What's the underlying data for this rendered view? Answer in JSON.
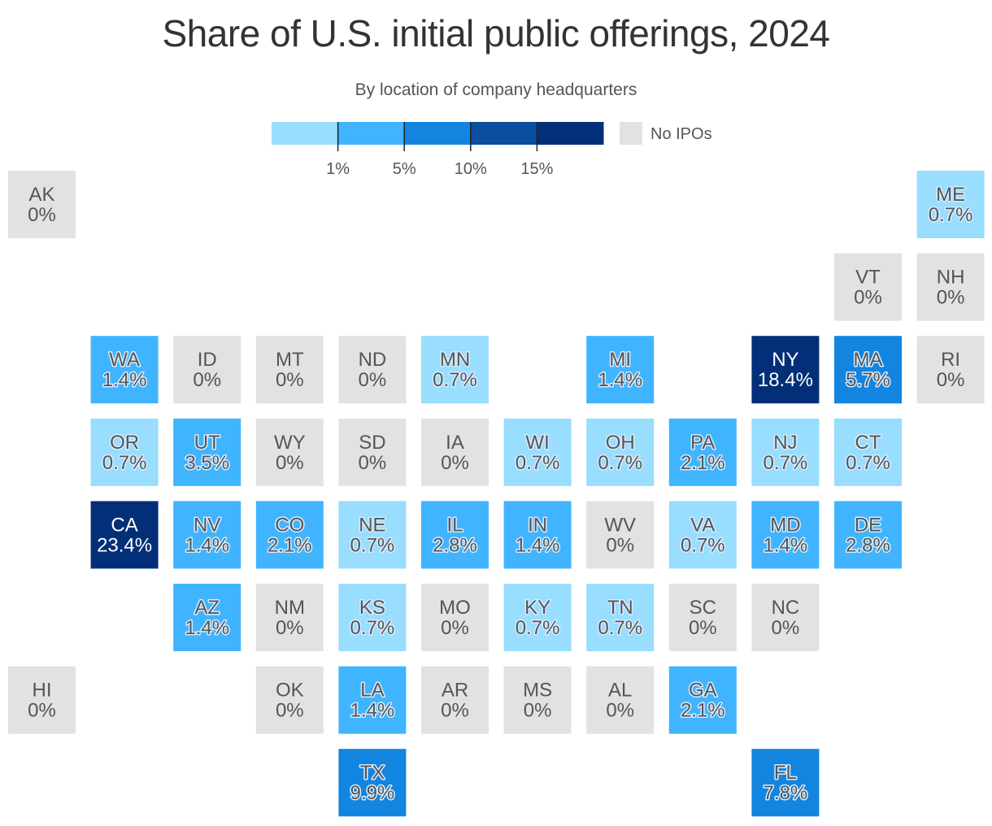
{
  "header": {
    "title": "Share of U.S. initial public offerings, 2024",
    "subtitle": "By location of company headquarters"
  },
  "legend": {
    "bins": [
      {
        "color": "#99ddff"
      },
      {
        "color": "#40b4ff"
      },
      {
        "color": "#1285e0"
      },
      {
        "color": "#0a4ea0"
      },
      {
        "color": "#032f78"
      }
    ],
    "ticks": [
      "1%",
      "5%",
      "10%",
      "15%"
    ],
    "tick_values": [
      1,
      5,
      10,
      15
    ],
    "no_ipo_label": "No IPOs",
    "no_ipo_color": "#e1e2e4"
  },
  "chart_data": {
    "type": "tile-map",
    "title": "Share of U.S. initial public offerings, 2024",
    "subtitle": "By location of company headquarters",
    "unit": "%",
    "tiles": [
      {
        "state": "AK",
        "value": 0,
        "label": "0%",
        "col": 0,
        "row": 0
      },
      {
        "state": "ME",
        "value": 0.7,
        "label": "0.7%",
        "col": 11,
        "row": 0
      },
      {
        "state": "VT",
        "value": 0,
        "label": "0%",
        "col": 10,
        "row": 1
      },
      {
        "state": "NH",
        "value": 0,
        "label": "0%",
        "col": 11,
        "row": 1
      },
      {
        "state": "WA",
        "value": 1.4,
        "label": "1.4%",
        "col": 1,
        "row": 2
      },
      {
        "state": "ID",
        "value": 0,
        "label": "0%",
        "col": 2,
        "row": 2
      },
      {
        "state": "MT",
        "value": 0,
        "label": "0%",
        "col": 3,
        "row": 2
      },
      {
        "state": "ND",
        "value": 0,
        "label": "0%",
        "col": 4,
        "row": 2
      },
      {
        "state": "MN",
        "value": 0.7,
        "label": "0.7%",
        "col": 5,
        "row": 2
      },
      {
        "state": "MI",
        "value": 1.4,
        "label": "1.4%",
        "col": 7,
        "row": 2
      },
      {
        "state": "NY",
        "value": 18.4,
        "label": "18.4%",
        "col": 9,
        "row": 2
      },
      {
        "state": "MA",
        "value": 5.7,
        "label": "5.7%",
        "col": 10,
        "row": 2
      },
      {
        "state": "RI",
        "value": 0,
        "label": "0%",
        "col": 11,
        "row": 2
      },
      {
        "state": "OR",
        "value": 0.7,
        "label": "0.7%",
        "col": 1,
        "row": 3
      },
      {
        "state": "UT",
        "value": 3.5,
        "label": "3.5%",
        "col": 2,
        "row": 3
      },
      {
        "state": "WY",
        "value": 0,
        "label": "0%",
        "col": 3,
        "row": 3
      },
      {
        "state": "SD",
        "value": 0,
        "label": "0%",
        "col": 4,
        "row": 3
      },
      {
        "state": "IA",
        "value": 0,
        "label": "0%",
        "col": 5,
        "row": 3
      },
      {
        "state": "WI",
        "value": 0.7,
        "label": "0.7%",
        "col": 6,
        "row": 3
      },
      {
        "state": "OH",
        "value": 0.7,
        "label": "0.7%",
        "col": 7,
        "row": 3
      },
      {
        "state": "PA",
        "value": 2.1,
        "label": "2.1%",
        "col": 8,
        "row": 3
      },
      {
        "state": "NJ",
        "value": 0.7,
        "label": "0.7%",
        "col": 9,
        "row": 3
      },
      {
        "state": "CT",
        "value": 0.7,
        "label": "0.7%",
        "col": 10,
        "row": 3
      },
      {
        "state": "CA",
        "value": 23.4,
        "label": "23.4%",
        "col": 1,
        "row": 4
      },
      {
        "state": "NV",
        "value": 1.4,
        "label": "1.4%",
        "col": 2,
        "row": 4
      },
      {
        "state": "CO",
        "value": 2.1,
        "label": "2.1%",
        "col": 3,
        "row": 4
      },
      {
        "state": "NE",
        "value": 0.7,
        "label": "0.7%",
        "col": 4,
        "row": 4
      },
      {
        "state": "IL",
        "value": 2.8,
        "label": "2.8%",
        "col": 5,
        "row": 4
      },
      {
        "state": "IN",
        "value": 1.4,
        "label": "1.4%",
        "col": 6,
        "row": 4
      },
      {
        "state": "WV",
        "value": 0,
        "label": "0%",
        "col": 7,
        "row": 4
      },
      {
        "state": "VA",
        "value": 0.7,
        "label": "0.7%",
        "col": 8,
        "row": 4
      },
      {
        "state": "MD",
        "value": 1.4,
        "label": "1.4%",
        "col": 9,
        "row": 4
      },
      {
        "state": "DE",
        "value": 2.8,
        "label": "2.8%",
        "col": 10,
        "row": 4
      },
      {
        "state": "AZ",
        "value": 1.4,
        "label": "1.4%",
        "col": 2,
        "row": 5
      },
      {
        "state": "NM",
        "value": 0,
        "label": "0%",
        "col": 3,
        "row": 5
      },
      {
        "state": "KS",
        "value": 0.7,
        "label": "0.7%",
        "col": 4,
        "row": 5
      },
      {
        "state": "MO",
        "value": 0,
        "label": "0%",
        "col": 5,
        "row": 5
      },
      {
        "state": "KY",
        "value": 0.7,
        "label": "0.7%",
        "col": 6,
        "row": 5
      },
      {
        "state": "TN",
        "value": 0.7,
        "label": "0.7%",
        "col": 7,
        "row": 5
      },
      {
        "state": "SC",
        "value": 0,
        "label": "0%",
        "col": 8,
        "row": 5
      },
      {
        "state": "NC",
        "value": 0,
        "label": "0%",
        "col": 9,
        "row": 5
      },
      {
        "state": "HI",
        "value": 0,
        "label": "0%",
        "col": 0,
        "row": 6
      },
      {
        "state": "OK",
        "value": 0,
        "label": "0%",
        "col": 3,
        "row": 6
      },
      {
        "state": "LA",
        "value": 1.4,
        "label": "1.4%",
        "col": 4,
        "row": 6
      },
      {
        "state": "AR",
        "value": 0,
        "label": "0%",
        "col": 5,
        "row": 6
      },
      {
        "state": "MS",
        "value": 0,
        "label": "0%",
        "col": 6,
        "row": 6
      },
      {
        "state": "AL",
        "value": 0,
        "label": "0%",
        "col": 7,
        "row": 6
      },
      {
        "state": "GA",
        "value": 2.1,
        "label": "2.1%",
        "col": 8,
        "row": 6
      },
      {
        "state": "TX",
        "value": 9.9,
        "label": "9.9%",
        "col": 4,
        "row": 7
      },
      {
        "state": "FL",
        "value": 7.8,
        "label": "7.8%",
        "col": 9,
        "row": 7
      }
    ]
  }
}
